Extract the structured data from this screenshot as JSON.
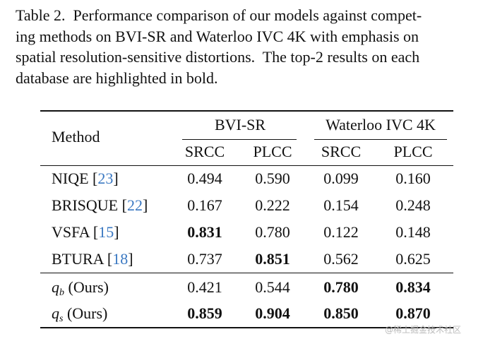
{
  "caption": {
    "lines": [
      "Table 2.  Performance comparison of our models against compet-",
      "ing methods on BVI-SR and Waterloo IVC 4K with emphasis on",
      "spatial resolution-sensitive distortions.  The top-2 results on each",
      "database are highlighted in bold."
    ]
  },
  "table": {
    "header": {
      "method": "Method",
      "groups": [
        "BVI-SR",
        "Waterloo IVC 4K"
      ],
      "columns": [
        "SRCC",
        "PLCC",
        "SRCC",
        "PLCC"
      ]
    },
    "rows": [
      {
        "method": [
          {
            "text": "NIQE ",
            "style": "plain"
          },
          {
            "text": "[",
            "style": "plain"
          },
          {
            "text": "23",
            "style": "cite"
          },
          {
            "text": "]",
            "style": "plain"
          }
        ],
        "values": [
          "0.494",
          "0.590",
          "0.099",
          "0.160"
        ],
        "bold": [
          false,
          false,
          false,
          false
        ]
      },
      {
        "method": [
          {
            "text": "BRISQUE ",
            "style": "plain"
          },
          {
            "text": "[",
            "style": "plain"
          },
          {
            "text": "22",
            "style": "cite"
          },
          {
            "text": "]",
            "style": "plain"
          }
        ],
        "values": [
          "0.167",
          "0.222",
          "0.154",
          "0.248"
        ],
        "bold": [
          false,
          false,
          false,
          false
        ]
      },
      {
        "method": [
          {
            "text": "VSFA ",
            "style": "plain"
          },
          {
            "text": "[",
            "style": "plain"
          },
          {
            "text": "15",
            "style": "cite"
          },
          {
            "text": "]",
            "style": "plain"
          }
        ],
        "values": [
          "0.831",
          "0.780",
          "0.122",
          "0.148"
        ],
        "bold": [
          true,
          false,
          false,
          false
        ]
      },
      {
        "method": [
          {
            "text": "BTURA ",
            "style": "plain"
          },
          {
            "text": "[",
            "style": "plain"
          },
          {
            "text": "18",
            "style": "cite"
          },
          {
            "text": "]",
            "style": "plain"
          }
        ],
        "values": [
          "0.737",
          "0.851",
          "0.562",
          "0.625"
        ],
        "bold": [
          false,
          true,
          false,
          false
        ]
      },
      {
        "method": [
          {
            "text": "q",
            "style": "italic"
          },
          {
            "text": "b",
            "style": "sub"
          },
          {
            "text": " (Ours)",
            "style": "plain"
          }
        ],
        "values": [
          "0.421",
          "0.544",
          "0.780",
          "0.834"
        ],
        "bold": [
          false,
          false,
          true,
          true
        ]
      },
      {
        "method": [
          {
            "text": "q",
            "style": "italic"
          },
          {
            "text": "s",
            "style": "sub"
          },
          {
            "text": " (Ours)",
            "style": "plain"
          }
        ],
        "values": [
          "0.859",
          "0.904",
          "0.850",
          "0.870"
        ],
        "bold": [
          true,
          true,
          true,
          true
        ]
      }
    ]
  },
  "watermark": "@稀土掘金技术社区"
}
